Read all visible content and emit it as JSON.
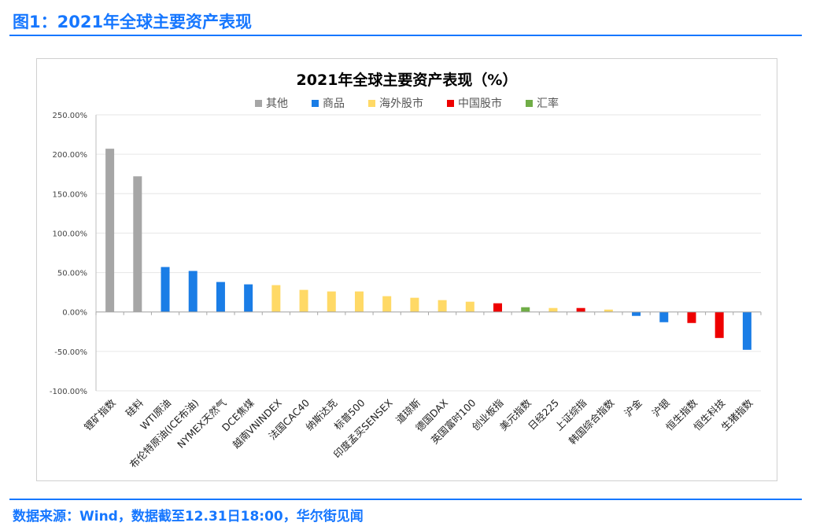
{
  "header": {
    "figure_title": "图1：2021年全球主要资产表现"
  },
  "footer": {
    "source": "数据来源：Wind，数据截至12.31日18:00，华尔街见闻"
  },
  "chart_data": {
    "type": "bar",
    "title": "2021年全球主要资产表现（%）",
    "legend": [
      {
        "name": "其他",
        "color": "#a6a6a6"
      },
      {
        "name": "商品",
        "color": "#1a7de6"
      },
      {
        "name": "海外股市",
        "color": "#ffd966"
      },
      {
        "name": "中国股市",
        "color": "#ee0000"
      },
      {
        "name": "汇率",
        "color": "#70ad47"
      }
    ],
    "legend_position": "top",
    "ylim": [
      -100,
      250
    ],
    "yticks": [
      "250.00%",
      "200.00%",
      "150.00%",
      "100.00%",
      "50.00%",
      "0.00%",
      "-50.00%",
      "-100.00%"
    ],
    "grid": true,
    "categories": [
      "锂矿指数",
      "硅料",
      "WTI原油",
      "布伦特原油(ICE布油)",
      "NYMEX天然气",
      "DCE焦煤",
      "越南VNINDEX",
      "法国CAC40",
      "纳斯达克",
      "标普500",
      "印度孟买SENSEX",
      "道琼斯",
      "德国DAX",
      "英国富时100",
      "创业板指",
      "美元指数",
      "日经225",
      "上证综指",
      "韩国综合指数",
      "沪金",
      "沪银",
      "恒生指数",
      "恒生科技",
      "生猪指数"
    ],
    "values": [
      207,
      172,
      57,
      52,
      38,
      35,
      34,
      28,
      26,
      26,
      20,
      18,
      15,
      13,
      11,
      6,
      5,
      5,
      3,
      -5,
      -13,
      -14,
      -33,
      -48
    ],
    "groups": [
      "其他",
      "其他",
      "商品",
      "商品",
      "商品",
      "商品",
      "海外股市",
      "海外股市",
      "海外股市",
      "海外股市",
      "海外股市",
      "海外股市",
      "海外股市",
      "海外股市",
      "中国股市",
      "汇率",
      "海外股市",
      "中国股市",
      "海外股市",
      "商品",
      "商品",
      "中国股市",
      "中国股市",
      "商品"
    ]
  }
}
